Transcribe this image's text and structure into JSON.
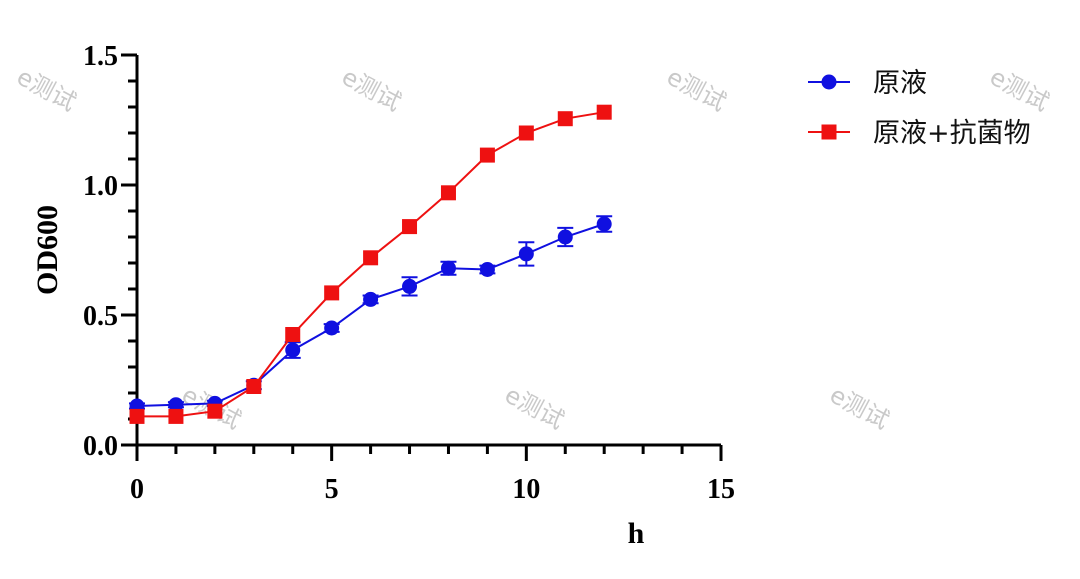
{
  "chart_data": {
    "type": "line",
    "title": "",
    "xlabel": "h",
    "ylabel": "OD600",
    "xlim": [
      0,
      15
    ],
    "ylim": [
      0,
      1.5
    ],
    "xticks": [
      "0",
      "5",
      "10",
      "15"
    ],
    "yticks": [
      "0.0",
      "0.5",
      "1.0",
      "1.5"
    ],
    "grid": false,
    "legend_position": "top-right",
    "series": [
      {
        "name": "原液",
        "color": "#1010e0",
        "marker": "circle",
        "x": [
          0,
          1,
          2,
          3,
          4,
          5,
          6,
          7,
          8,
          9,
          10,
          11,
          12
        ],
        "y": [
          0.15,
          0.155,
          0.16,
          0.23,
          0.365,
          0.45,
          0.56,
          0.61,
          0.68,
          0.675,
          0.735,
          0.8,
          0.85
        ],
        "err": [
          0.01,
          0.01,
          0.01,
          0.015,
          0.03,
          0.015,
          0.015,
          0.035,
          0.025,
          0.015,
          0.045,
          0.035,
          0.03
        ]
      },
      {
        "name": "原液+抗菌物",
        "color": "#ee1111",
        "marker": "square",
        "x": [
          0,
          1,
          2,
          3,
          4,
          5,
          6,
          7,
          8,
          9,
          10,
          11,
          12
        ],
        "y": [
          0.11,
          0.11,
          0.13,
          0.225,
          0.425,
          0.585,
          0.72,
          0.84,
          0.97,
          1.115,
          1.2,
          1.255,
          1.28
        ],
        "err": [
          0,
          0,
          0,
          0,
          0,
          0,
          0,
          0,
          0,
          0,
          0,
          0,
          0
        ]
      }
    ]
  },
  "watermarks": [
    "e测试",
    "e测试",
    "e测试",
    "e测试",
    "e测试",
    "e测试",
    "e测试"
  ]
}
